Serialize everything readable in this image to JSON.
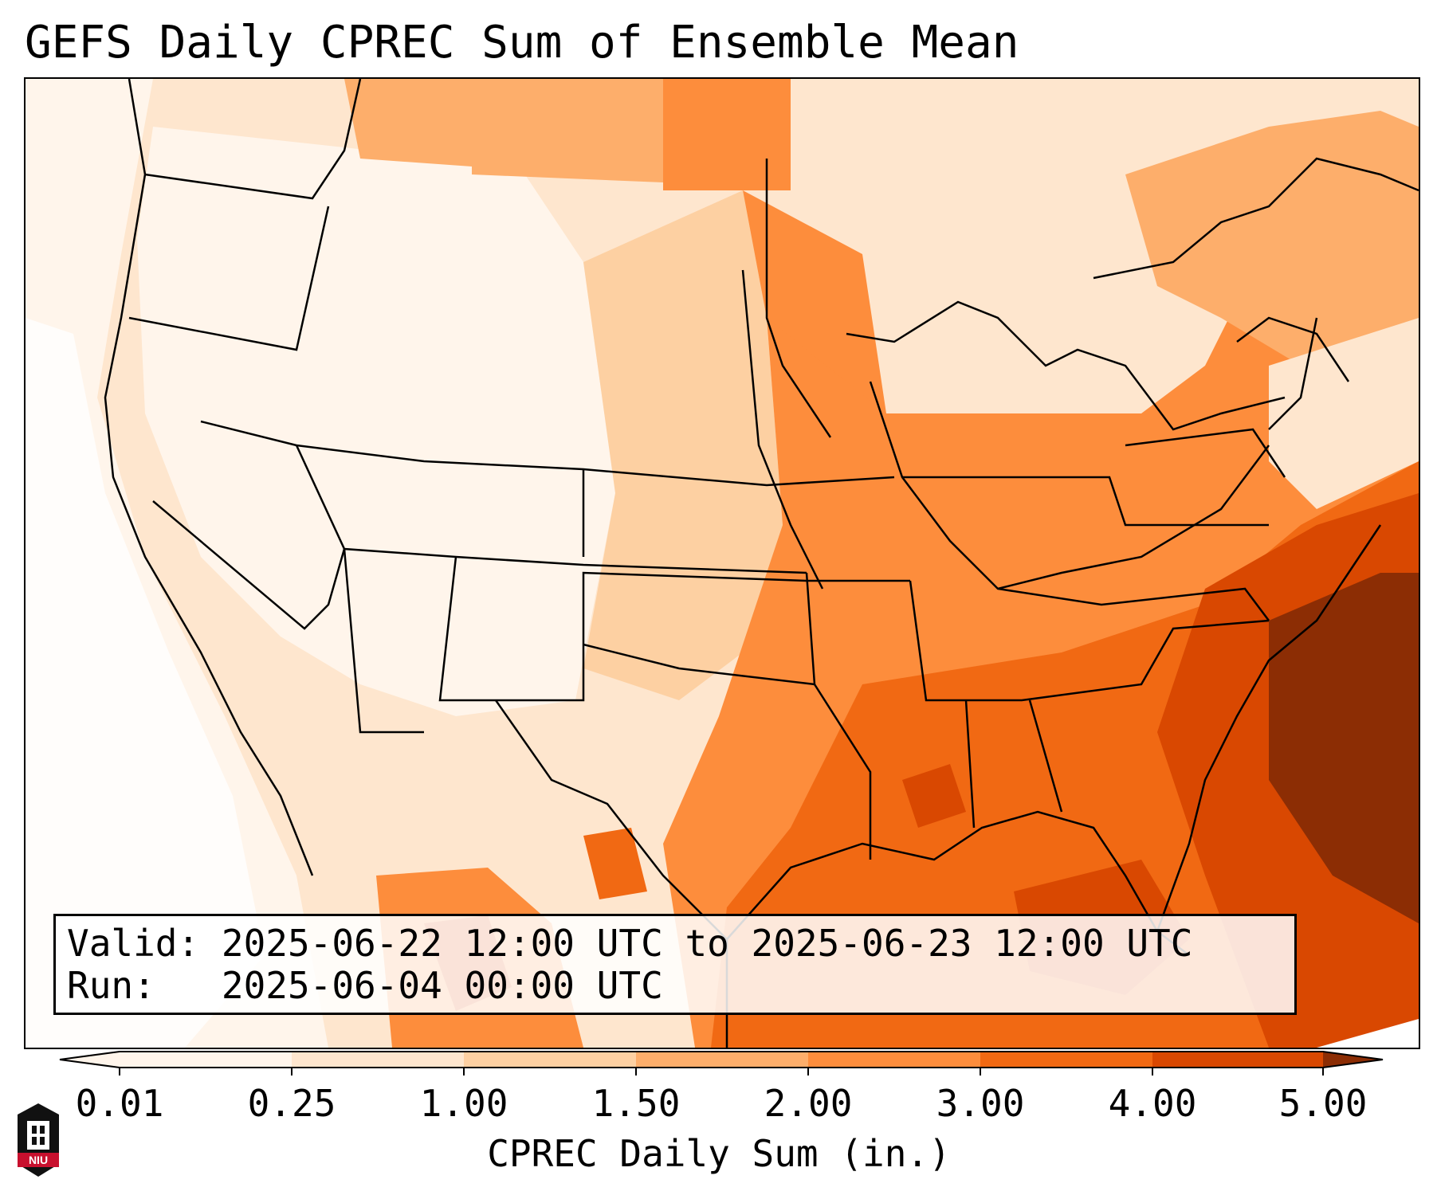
{
  "title": "GEFS Daily CPREC Sum of Ensemble Mean",
  "info": {
    "valid_label": "Valid:",
    "valid_value": "2025-06-22 12:00 UTC to 2025-06-23 12:00 UTC",
    "run_label": "Run:",
    "run_value": "2025-06-04 00:00 UTC"
  },
  "colorbar": {
    "label": "CPREC Daily Sum (in.)",
    "ticks": [
      "0.01",
      "0.25",
      "1.00",
      "1.50",
      "2.00",
      "3.00",
      "4.00",
      "5.00"
    ],
    "colors": [
      "#fff5eb",
      "#fee6ce",
      "#fdd0a2",
      "#fdae6b",
      "#fd8d3c",
      "#f16913",
      "#d94801",
      "#8c2d04"
    ]
  },
  "logo": {
    "text": "NIU",
    "color": "#c8102e"
  },
  "legend_colors": {
    "background": "#fde8d4",
    "state_lines": "#000000"
  }
}
